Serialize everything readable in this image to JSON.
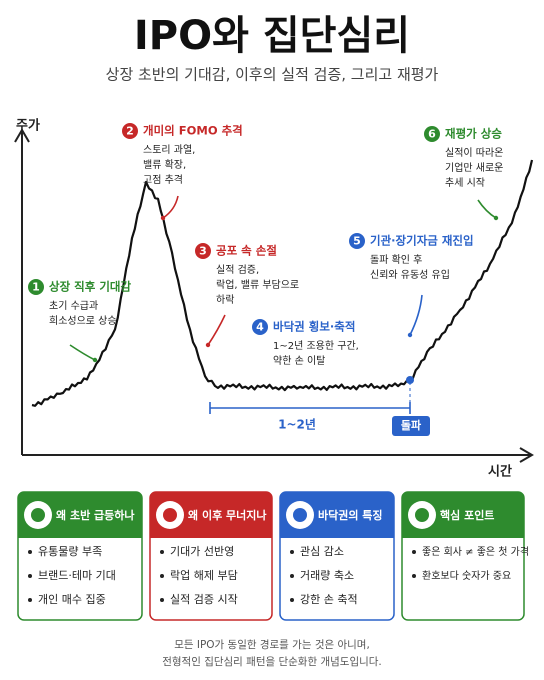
{
  "header": {
    "title": "IPO와 집단심리",
    "subtitle": "상장 초반의 기대감, 이후의 실적 검증, 그리고 재평가"
  },
  "diagram": {
    "y_label": "주가",
    "x_label": "시간",
    "range_label": "1~2년",
    "breakout_label": "돌파",
    "annotations": [
      {
        "number": 1,
        "title": "상장 직후 기대감",
        "text": [
          "초기 수급과",
          "희소성으로 상승"
        ]
      },
      {
        "number": 2,
        "title": "개미의 FOMO 추격",
        "text": [
          "스토리 과열,",
          "밸류 확장,",
          "고점 추격"
        ]
      },
      {
        "number": 3,
        "title": "공포 속 손절",
        "text": [
          "실적 검증,",
          "락업, 밸류 부담으로",
          "하락"
        ]
      },
      {
        "number": 4,
        "title": "바닥권 횡보·축적",
        "text": [
          "1~2년 조용한 구간,",
          "약한 손 이탈"
        ]
      },
      {
        "number": 5,
        "title": "기관·장기자금 재진입",
        "text": [
          "돌파 확인 후",
          "신뢰와 유동성 유입"
        ]
      },
      {
        "number": 6,
        "title": "재평가 상승",
        "text": [
          "실적이 따라온",
          "기업만 새로운",
          "추세 시작"
        ]
      }
    ]
  },
  "cards": [
    {
      "title": "왜 초반 급등하나",
      "items": [
        "유통물량 부족",
        "브랜드·테마 기대",
        "개인 매수 집중"
      ]
    },
    {
      "title": "왜 이후 무너지나",
      "items": [
        "기대가 선반영",
        "락업 해제 부담",
        "실적 검증 시작"
      ]
    },
    {
      "title": "바닥권의 특징",
      "items": [
        "관심 감소",
        "거래량 축소",
        "강한 손 축적"
      ]
    },
    {
      "title": "핵심 포인트",
      "items": [
        "좋은 회사 ≠ 좋은 첫 가격",
        "환호보다 숫자가 중요"
      ]
    }
  ],
  "footer": [
    "모든 IPO가 동일한 경로를 가는 것은 아니며,",
    "전형적인 집단심리 패턴을 단순화한 개념도입니다."
  ]
}
